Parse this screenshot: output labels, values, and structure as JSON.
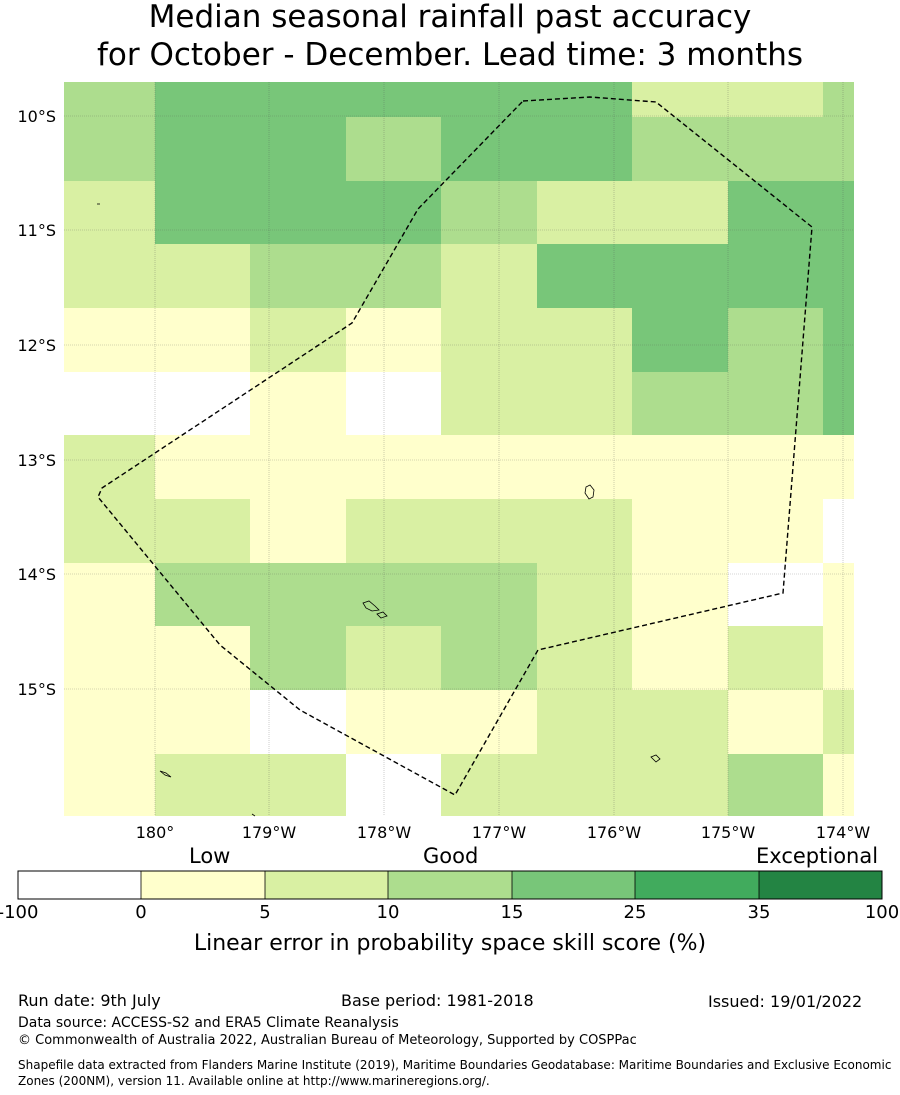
{
  "title_line1": "Median seasonal rainfall past accuracy",
  "title_line2": "for October - December. Lead time: 3 months",
  "map": {
    "lat_labels": [
      "10°S",
      "11°S",
      "12°S",
      "13°S",
      "14°S",
      "15°S"
    ],
    "lon_labels": [
      "180°",
      "179°W",
      "178°W",
      "177°W",
      "176°W",
      "175°W",
      "174°W"
    ],
    "grid": [
      [
        3,
        4,
        4,
        4,
        4,
        4,
        2,
        2,
        3
      ],
      [
        3,
        4,
        4,
        3,
        4,
        4,
        3,
        3,
        3
      ],
      [
        2,
        4,
        4,
        4,
        3,
        2,
        2,
        4,
        4
      ],
      [
        2,
        2,
        3,
        3,
        2,
        4,
        4,
        4,
        4
      ],
      [
        1,
        1,
        2,
        1,
        2,
        2,
        4,
        3,
        4
      ],
      [
        0,
        0,
        1,
        0,
        2,
        2,
        3,
        3,
        4
      ],
      [
        2,
        1,
        1,
        1,
        1,
        1,
        1,
        1,
        1
      ],
      [
        2,
        2,
        1,
        2,
        2,
        2,
        1,
        1,
        0
      ],
      [
        1,
        3,
        3,
        3,
        3,
        2,
        1,
        0,
        1
      ],
      [
        1,
        1,
        3,
        2,
        3,
        2,
        1,
        2,
        1
      ],
      [
        1,
        1,
        0,
        1,
        1,
        2,
        2,
        1,
        2
      ],
      [
        1,
        2,
        2,
        0,
        2,
        2,
        2,
        3,
        1
      ]
    ]
  },
  "colorbar": {
    "category_labels": [
      "Low",
      "Good",
      "Exceptional"
    ],
    "ticks": [
      "-100",
      "0",
      "5",
      "10",
      "15",
      "25",
      "35",
      "100"
    ],
    "colors": [
      "#ffffff",
      "#ffffcc",
      "#d9f0a3",
      "#addd8e",
      "#78c679",
      "#41ab5d",
      "#238443"
    ],
    "title": "Linear error in probability space skill score (%)"
  },
  "footer": {
    "run_date": "Run date: 9th July",
    "base_period": "Base period: 1981-2018",
    "issued": "Issued: 19/01/2022",
    "data_source": "Data source: ACCESS-S2 and ERA5 Climate Reanalysis",
    "copyright": "© Commonwealth of Australia 2022, Australian Bureau of Meteorology, Supported by COSPPac",
    "shapefile_line1": "Shapefile data extracted from Flanders Marine Institute (2019), Maritime Boundaries Geodatabase: Maritime Boundaries and Exclusive Economic",
    "shapefile_line2": "Zones (200NM), version 11. Available online at http://www.marineregions.org/."
  }
}
